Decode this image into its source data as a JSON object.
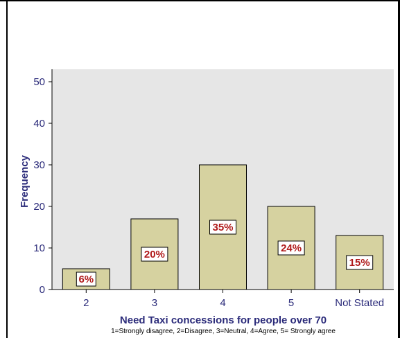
{
  "chart_data": {
    "type": "bar",
    "categories": [
      "2",
      "3",
      "4",
      "5",
      "Not Stated"
    ],
    "values": [
      5,
      17,
      30,
      20,
      13
    ],
    "percent_labels": [
      "6%",
      "20%",
      "35%",
      "24%",
      "15%"
    ],
    "xlabel": "Need Taxi concessions for people over 70",
    "x_subtitle": "1=Strongly disagree, 2=Disagree, 3=Neutral, 4=Agree, 5= Strongly agree",
    "ylabel": "Frequency",
    "ylim": [
      0,
      50
    ],
    "yticks": [
      "0",
      "10",
      "20",
      "30",
      "40",
      "50"
    ],
    "grid": false,
    "colors": {
      "bar_fill": "#d6d2a0",
      "plot_bg": "#e6e6e6",
      "axis_text": "#2b2b7a",
      "data_label_text": "#b01a1a"
    }
  }
}
